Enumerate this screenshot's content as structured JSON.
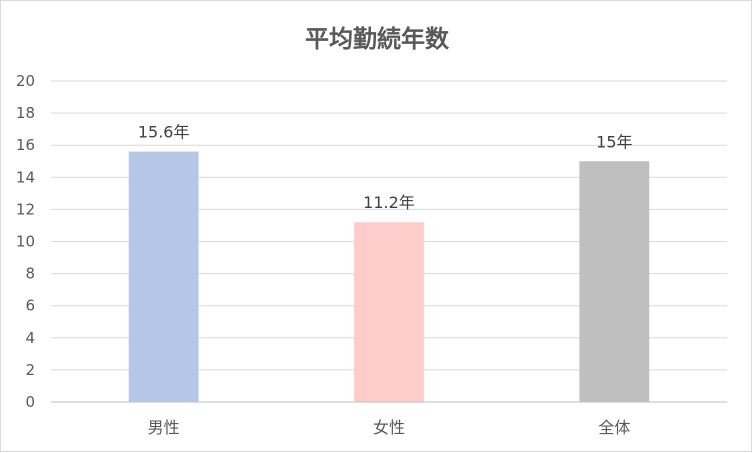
{
  "chart_data": {
    "type": "bar",
    "title": "平均勤続年数",
    "categories": [
      "男性",
      "女性",
      "全体"
    ],
    "values": [
      15.6,
      11.2,
      15
    ],
    "data_labels": [
      "15.6年",
      "11.2年",
      "15年"
    ],
    "colors": [
      "#b4c7e7",
      "#ffcccc",
      "#bfbfbf"
    ],
    "ylim": [
      0,
      20
    ],
    "yticks": [
      "0",
      "2",
      "4",
      "6",
      "8",
      "10",
      "12",
      "14",
      "16",
      "18",
      "20"
    ],
    "grid": true,
    "xlabel": "",
    "ylabel": ""
  }
}
